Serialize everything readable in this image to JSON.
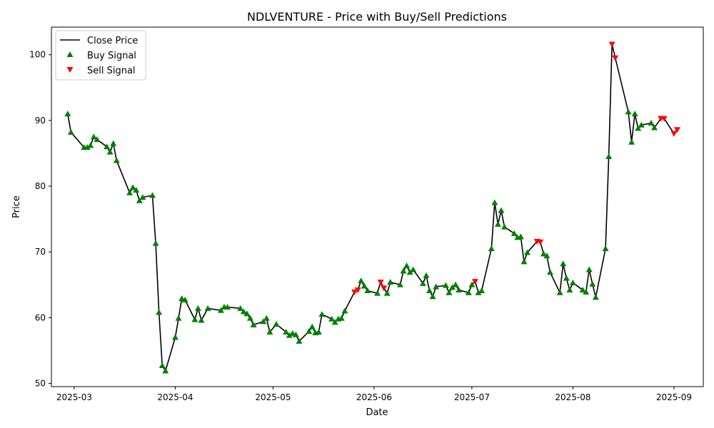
{
  "chart_data": {
    "type": "line",
    "title": "NDLVENTURE - Price with Buy/Sell Predictions",
    "xlabel": "Date",
    "ylabel": "Price",
    "xlim": [
      "2025-02-22",
      "2025-09-10"
    ],
    "ylim": [
      49.5,
      104.2
    ],
    "x_ticks": [
      "2025-03-01",
      "2025-04-01",
      "2025-05-01",
      "2025-06-01",
      "2025-07-01",
      "2025-08-01",
      "2025-09-01"
    ],
    "x_tick_labels": [
      "2025-03",
      "2025-04",
      "2025-05",
      "2025-06",
      "2025-07",
      "2025-08",
      "2025-09"
    ],
    "y_ticks": [
      50,
      60,
      70,
      80,
      90,
      100
    ],
    "grid": false,
    "legend_position": "top-left",
    "legend": {
      "close": "Close Price",
      "buy": "Buy Signal",
      "sell": "Sell Signal"
    },
    "colors": {
      "close": "#000000",
      "buy": "#008000",
      "sell": "#ff0000"
    },
    "series": [
      {
        "name": "Close Price",
        "points": [
          [
            "2025-02-27",
            91.0
          ],
          [
            "2025-02-28",
            88.2
          ],
          [
            "2025-03-04",
            85.9
          ],
          [
            "2025-03-05",
            85.9
          ],
          [
            "2025-03-06",
            86.2
          ],
          [
            "2025-03-07",
            87.5
          ],
          [
            "2025-03-08",
            87.1
          ],
          [
            "2025-03-11",
            86.0
          ],
          [
            "2025-03-12",
            85.2
          ],
          [
            "2025-03-13",
            86.5
          ],
          [
            "2025-03-14",
            83.9
          ],
          [
            "2025-03-18",
            79.0
          ],
          [
            "2025-03-19",
            79.8
          ],
          [
            "2025-03-20",
            79.4
          ],
          [
            "2025-03-21",
            77.8
          ],
          [
            "2025-03-22",
            78.3
          ],
          [
            "2025-03-25",
            78.6
          ],
          [
            "2025-03-26",
            71.3
          ],
          [
            "2025-03-27",
            60.8
          ],
          [
            "2025-03-28",
            52.7
          ],
          [
            "2025-03-29",
            51.9
          ],
          [
            "2025-04-01",
            57.0
          ],
          [
            "2025-04-02",
            59.9
          ],
          [
            "2025-04-03",
            62.9
          ],
          [
            "2025-04-04",
            62.7
          ],
          [
            "2025-04-07",
            59.7
          ],
          [
            "2025-04-08",
            61.4
          ],
          [
            "2025-04-09",
            59.6
          ],
          [
            "2025-04-11",
            61.4
          ],
          [
            "2025-04-15",
            61.1
          ],
          [
            "2025-04-16",
            61.6
          ],
          [
            "2025-04-17",
            61.6
          ],
          [
            "2025-04-21",
            61.4
          ],
          [
            "2025-04-22",
            60.9
          ],
          [
            "2025-04-23",
            60.6
          ],
          [
            "2025-04-24",
            59.9
          ],
          [
            "2025-04-25",
            58.9
          ],
          [
            "2025-04-28",
            59.4
          ],
          [
            "2025-04-29",
            59.9
          ],
          [
            "2025-04-30",
            57.8
          ],
          [
            "2025-05-02",
            59.0
          ],
          [
            "2025-05-05",
            57.8
          ],
          [
            "2025-05-06",
            57.3
          ],
          [
            "2025-05-07",
            57.6
          ],
          [
            "2025-05-08",
            57.4
          ],
          [
            "2025-05-09",
            56.4
          ],
          [
            "2025-05-12",
            57.9
          ],
          [
            "2025-05-13",
            58.6
          ],
          [
            "2025-05-14",
            57.7
          ],
          [
            "2025-05-15",
            57.8
          ],
          [
            "2025-05-16",
            60.5
          ],
          [
            "2025-05-19",
            59.8
          ],
          [
            "2025-05-20",
            59.3
          ],
          [
            "2025-05-21",
            59.8
          ],
          [
            "2025-05-22",
            59.9
          ],
          [
            "2025-05-23",
            61.0
          ],
          [
            "2025-05-26",
            63.9
          ],
          [
            "2025-05-27",
            64.2
          ],
          [
            "2025-05-28",
            65.6
          ],
          [
            "2025-05-29",
            64.8
          ],
          [
            "2025-05-30",
            64.1
          ],
          [
            "2025-06-02",
            63.7
          ],
          [
            "2025-06-03",
            65.4
          ],
          [
            "2025-06-04",
            64.5
          ],
          [
            "2025-06-05",
            63.7
          ],
          [
            "2025-06-06",
            65.4
          ],
          [
            "2025-06-09",
            65.0
          ],
          [
            "2025-06-10",
            67.1
          ],
          [
            "2025-06-11",
            67.9
          ],
          [
            "2025-06-12",
            66.9
          ],
          [
            "2025-06-13",
            67.3
          ],
          [
            "2025-06-16",
            65.2
          ],
          [
            "2025-06-17",
            66.4
          ],
          [
            "2025-06-18",
            64.1
          ],
          [
            "2025-06-19",
            63.2
          ],
          [
            "2025-06-20",
            64.7
          ],
          [
            "2025-06-23",
            64.9
          ],
          [
            "2025-06-24",
            63.8
          ],
          [
            "2025-06-25",
            64.6
          ],
          [
            "2025-06-26",
            65.0
          ],
          [
            "2025-06-27",
            64.2
          ],
          [
            "2025-06-30",
            63.8
          ],
          [
            "2025-07-01",
            65.0
          ],
          [
            "2025-07-02",
            65.5
          ],
          [
            "2025-07-03",
            63.8
          ],
          [
            "2025-07-04",
            64.1
          ],
          [
            "2025-07-07",
            70.5
          ],
          [
            "2025-07-08",
            77.5
          ],
          [
            "2025-07-09",
            74.2
          ],
          [
            "2025-07-10",
            76.3
          ],
          [
            "2025-07-11",
            73.8
          ],
          [
            "2025-07-14",
            72.8
          ],
          [
            "2025-07-15",
            72.2
          ],
          [
            "2025-07-16",
            72.3
          ],
          [
            "2025-07-17",
            68.5
          ],
          [
            "2025-07-18",
            69.9
          ],
          [
            "2025-07-21",
            71.6
          ],
          [
            "2025-07-22",
            71.5
          ],
          [
            "2025-07-23",
            69.7
          ],
          [
            "2025-07-24",
            69.4
          ],
          [
            "2025-07-25",
            66.9
          ],
          [
            "2025-07-28",
            63.8
          ],
          [
            "2025-07-29",
            68.2
          ],
          [
            "2025-07-30",
            66.0
          ],
          [
            "2025-07-31",
            64.2
          ],
          [
            "2025-08-01",
            65.3
          ],
          [
            "2025-08-04",
            64.2
          ],
          [
            "2025-08-05",
            63.9
          ],
          [
            "2025-08-06",
            67.3
          ],
          [
            "2025-08-07",
            65.1
          ],
          [
            "2025-08-08",
            63.1
          ],
          [
            "2025-08-11",
            70.5
          ],
          [
            "2025-08-12",
            84.5
          ],
          [
            "2025-08-13",
            101.6
          ],
          [
            "2025-08-14",
            99.5
          ],
          [
            "2025-08-18",
            91.3
          ],
          [
            "2025-08-19",
            86.7
          ],
          [
            "2025-08-20",
            91.0
          ],
          [
            "2025-08-21",
            88.8
          ],
          [
            "2025-08-22",
            89.3
          ],
          [
            "2025-08-25",
            89.6
          ],
          [
            "2025-08-26",
            88.9
          ],
          [
            "2025-08-28",
            90.3
          ],
          [
            "2025-08-29",
            90.3
          ],
          [
            "2025-09-01",
            88.0
          ],
          [
            "2025-09-02",
            88.6
          ]
        ]
      },
      {
        "name": "Buy Signal",
        "marker": "triangle-up",
        "points": [
          [
            "2025-02-27",
            91.0
          ],
          [
            "2025-02-28",
            88.2
          ],
          [
            "2025-03-04",
            85.9
          ],
          [
            "2025-03-05",
            85.9
          ],
          [
            "2025-03-06",
            86.2
          ],
          [
            "2025-03-07",
            87.5
          ],
          [
            "2025-03-08",
            87.1
          ],
          [
            "2025-03-11",
            86.0
          ],
          [
            "2025-03-12",
            85.2
          ],
          [
            "2025-03-13",
            86.5
          ],
          [
            "2025-03-14",
            83.9
          ],
          [
            "2025-03-18",
            79.0
          ],
          [
            "2025-03-19",
            79.8
          ],
          [
            "2025-03-20",
            79.4
          ],
          [
            "2025-03-21",
            77.8
          ],
          [
            "2025-03-22",
            78.3
          ],
          [
            "2025-03-25",
            78.6
          ],
          [
            "2025-03-26",
            71.3
          ],
          [
            "2025-03-27",
            60.8
          ],
          [
            "2025-03-28",
            52.7
          ],
          [
            "2025-03-29",
            51.9
          ],
          [
            "2025-04-01",
            57.0
          ],
          [
            "2025-04-02",
            59.9
          ],
          [
            "2025-04-03",
            62.9
          ],
          [
            "2025-04-04",
            62.7
          ],
          [
            "2025-04-07",
            59.7
          ],
          [
            "2025-04-08",
            61.4
          ],
          [
            "2025-04-09",
            59.6
          ],
          [
            "2025-04-11",
            61.4
          ],
          [
            "2025-04-15",
            61.1
          ],
          [
            "2025-04-16",
            61.6
          ],
          [
            "2025-04-17",
            61.6
          ],
          [
            "2025-04-21",
            61.4
          ],
          [
            "2025-04-22",
            60.9
          ],
          [
            "2025-04-23",
            60.6
          ],
          [
            "2025-04-24",
            59.9
          ],
          [
            "2025-04-25",
            58.9
          ],
          [
            "2025-04-28",
            59.4
          ],
          [
            "2025-04-29",
            59.9
          ],
          [
            "2025-04-30",
            57.8
          ],
          [
            "2025-05-02",
            59.0
          ],
          [
            "2025-05-05",
            57.8
          ],
          [
            "2025-05-06",
            57.3
          ],
          [
            "2025-05-07",
            57.6
          ],
          [
            "2025-05-08",
            57.4
          ],
          [
            "2025-05-09",
            56.4
          ],
          [
            "2025-05-12",
            57.9
          ],
          [
            "2025-05-13",
            58.6
          ],
          [
            "2025-05-14",
            57.7
          ],
          [
            "2025-05-15",
            57.8
          ],
          [
            "2025-05-16",
            60.5
          ],
          [
            "2025-05-19",
            59.8
          ],
          [
            "2025-05-20",
            59.3
          ],
          [
            "2025-05-21",
            59.8
          ],
          [
            "2025-05-22",
            59.9
          ],
          [
            "2025-05-23",
            61.0
          ],
          [
            "2025-05-28",
            65.6
          ],
          [
            "2025-05-29",
            64.8
          ],
          [
            "2025-05-30",
            64.1
          ],
          [
            "2025-06-02",
            63.7
          ],
          [
            "2025-06-05",
            63.7
          ],
          [
            "2025-06-06",
            65.4
          ],
          [
            "2025-06-09",
            65.0
          ],
          [
            "2025-06-10",
            67.1
          ],
          [
            "2025-06-11",
            67.9
          ],
          [
            "2025-06-12",
            66.9
          ],
          [
            "2025-06-13",
            67.3
          ],
          [
            "2025-06-16",
            65.2
          ],
          [
            "2025-06-17",
            66.4
          ],
          [
            "2025-06-18",
            64.1
          ],
          [
            "2025-06-19",
            63.2
          ],
          [
            "2025-06-20",
            64.7
          ],
          [
            "2025-06-23",
            64.9
          ],
          [
            "2025-06-24",
            63.8
          ],
          [
            "2025-06-25",
            64.6
          ],
          [
            "2025-06-26",
            65.0
          ],
          [
            "2025-06-27",
            64.2
          ],
          [
            "2025-06-30",
            63.8
          ],
          [
            "2025-07-01",
            65.0
          ],
          [
            "2025-07-03",
            63.8
          ],
          [
            "2025-07-04",
            64.1
          ],
          [
            "2025-07-07",
            70.5
          ],
          [
            "2025-07-08",
            77.5
          ],
          [
            "2025-07-09",
            74.2
          ],
          [
            "2025-07-10",
            76.3
          ],
          [
            "2025-07-11",
            73.8
          ],
          [
            "2025-07-14",
            72.8
          ],
          [
            "2025-07-15",
            72.2
          ],
          [
            "2025-07-16",
            72.3
          ],
          [
            "2025-07-17",
            68.5
          ],
          [
            "2025-07-18",
            69.9
          ],
          [
            "2025-07-23",
            69.7
          ],
          [
            "2025-07-24",
            69.4
          ],
          [
            "2025-07-25",
            66.9
          ],
          [
            "2025-07-28",
            63.8
          ],
          [
            "2025-07-29",
            68.2
          ],
          [
            "2025-07-30",
            66.0
          ],
          [
            "2025-07-31",
            64.2
          ],
          [
            "2025-08-01",
            65.3
          ],
          [
            "2025-08-04",
            64.2
          ],
          [
            "2025-08-05",
            63.9
          ],
          [
            "2025-08-06",
            67.3
          ],
          [
            "2025-08-07",
            65.1
          ],
          [
            "2025-08-08",
            63.1
          ],
          [
            "2025-08-11",
            70.5
          ],
          [
            "2025-08-12",
            84.5
          ],
          [
            "2025-08-18",
            91.3
          ],
          [
            "2025-08-19",
            86.7
          ],
          [
            "2025-08-20",
            91.0
          ],
          [
            "2025-08-21",
            88.8
          ],
          [
            "2025-08-22",
            89.3
          ],
          [
            "2025-08-25",
            89.6
          ],
          [
            "2025-08-26",
            88.9
          ]
        ]
      },
      {
        "name": "Sell Signal",
        "marker": "triangle-down",
        "points": [
          [
            "2025-05-26",
            63.9
          ],
          [
            "2025-05-27",
            64.2
          ],
          [
            "2025-06-03",
            65.4
          ],
          [
            "2025-06-04",
            64.5
          ],
          [
            "2025-07-02",
            65.5
          ],
          [
            "2025-07-21",
            71.6
          ],
          [
            "2025-07-22",
            71.5
          ],
          [
            "2025-08-13",
            101.6
          ],
          [
            "2025-08-14",
            99.5
          ],
          [
            "2025-08-28",
            90.3
          ],
          [
            "2025-08-29",
            90.3
          ],
          [
            "2025-09-01",
            88.0
          ],
          [
            "2025-09-02",
            88.6
          ]
        ]
      }
    ]
  }
}
